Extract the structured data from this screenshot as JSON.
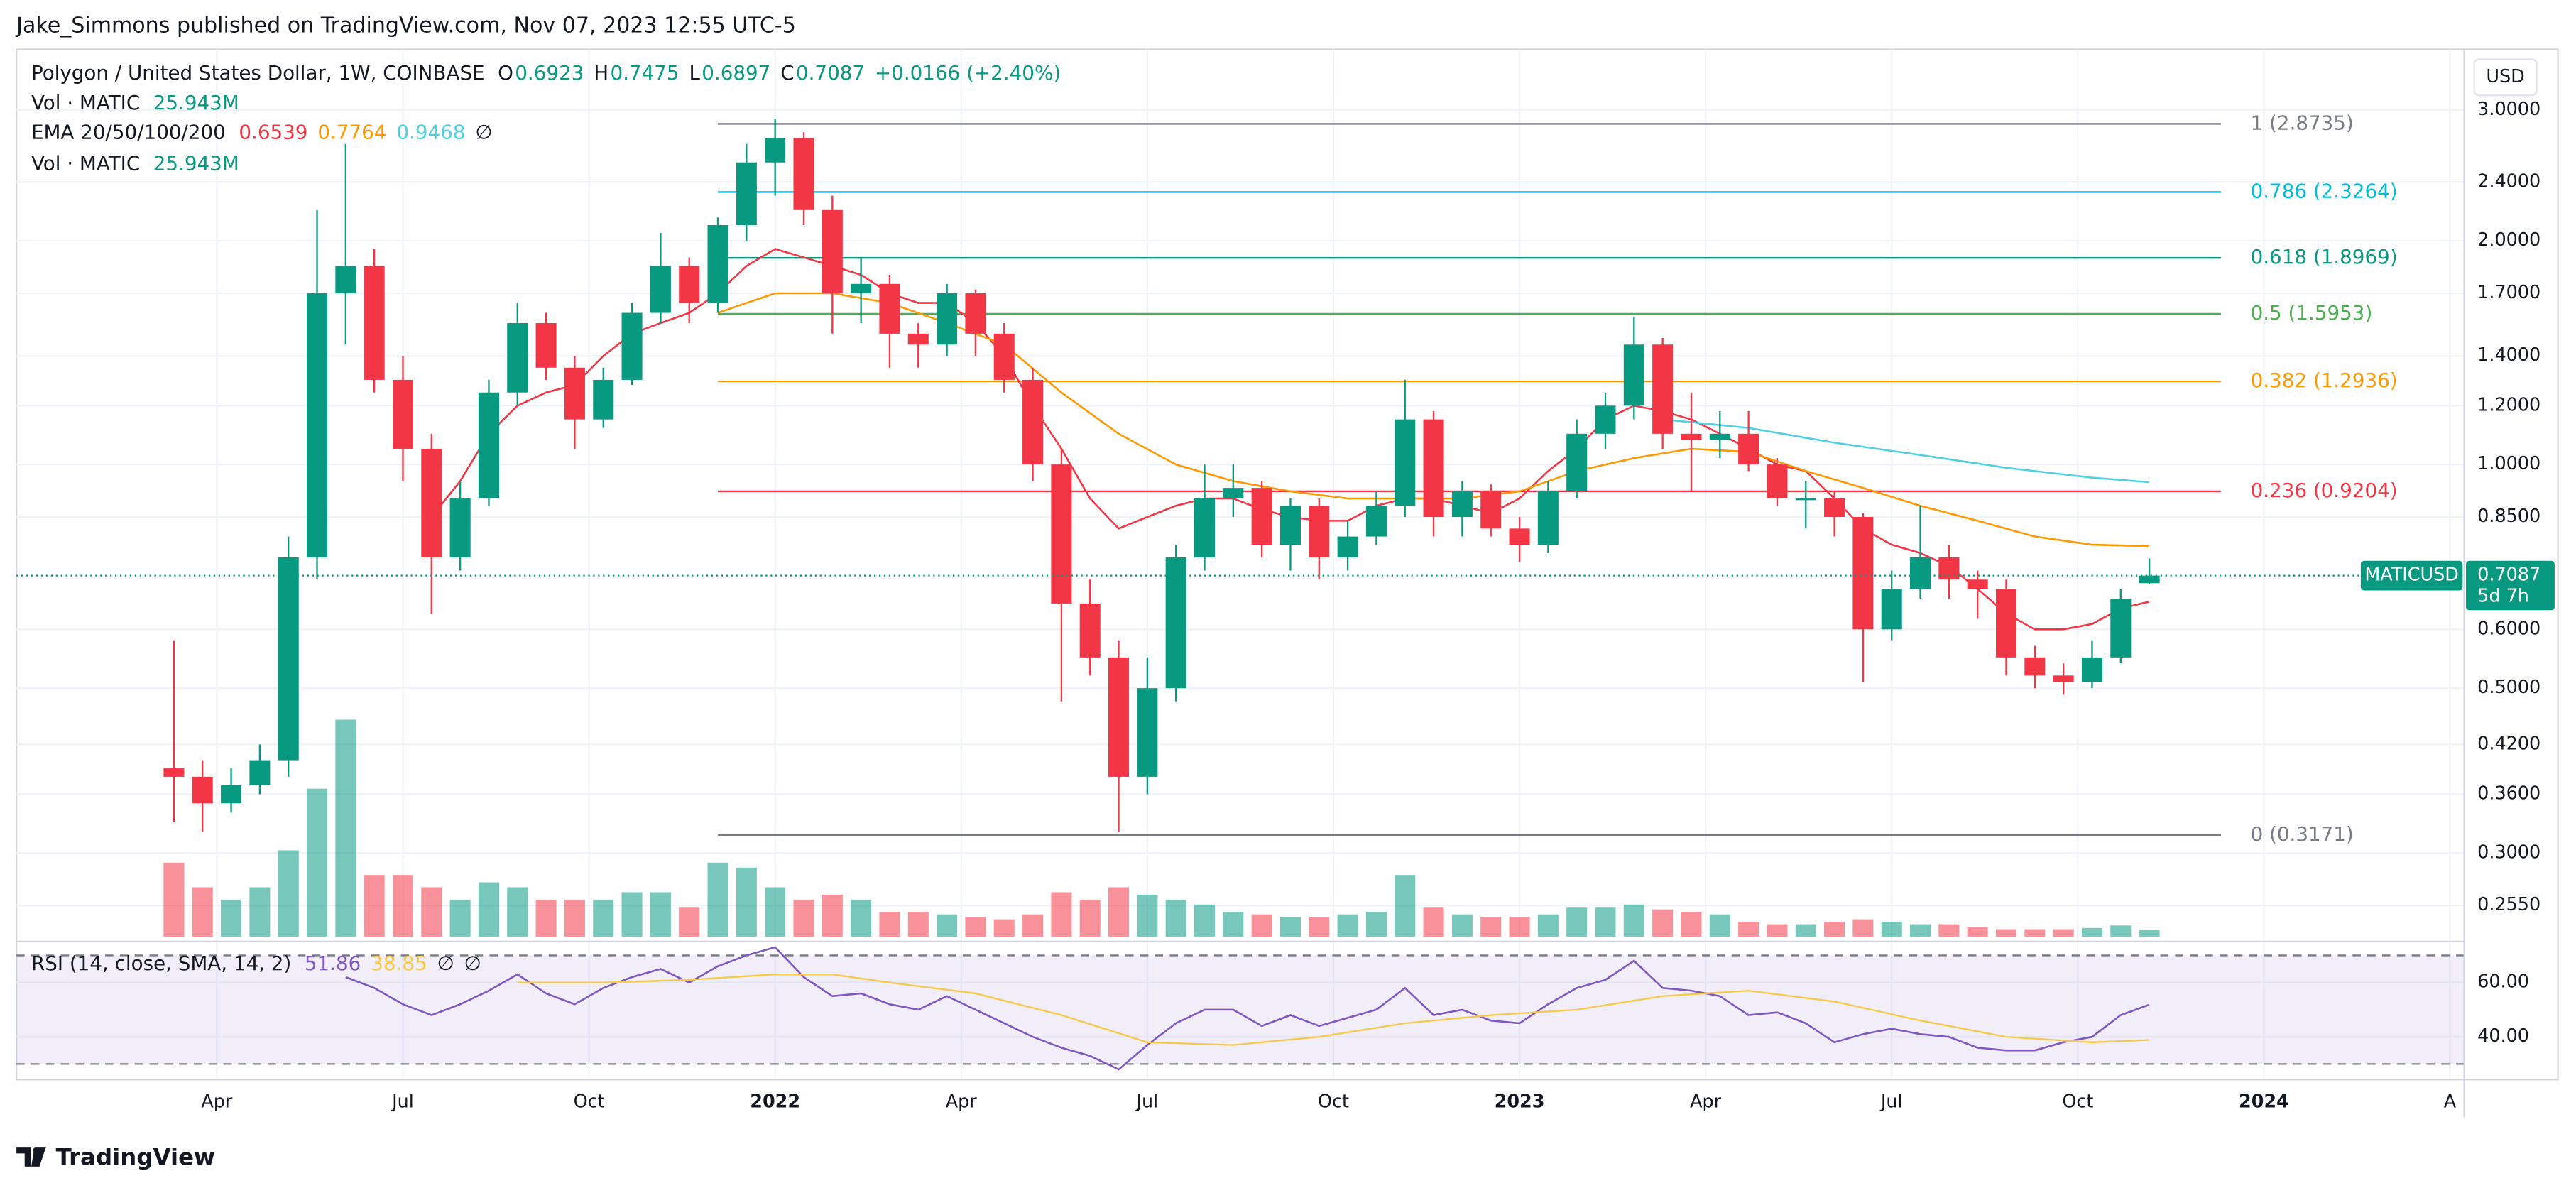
{
  "published": "Jake_Simmons published on TradingView.com, Nov 07, 2023 12:55 UTC-5",
  "brand": "TradingView",
  "chart_data": {
    "type": "candlestick",
    "title": "Polygon / United States Dollar, 1W, COINBASE",
    "ohlc_labels": [
      "O",
      "H",
      "L",
      "C"
    ],
    "change": "+0.0166 (+2.40%)",
    "currency": "USD",
    "symbol": "MATICUSD",
    "countdown": "5d 7h",
    "log_scale": true,
    "grid": true,
    "up_color": "#089981",
    "down_color": "#f23645",
    "candles": [
      [
        10,
        0.39,
        0.58,
        0.33,
        0.38
      ],
      [
        12,
        0.38,
        0.4,
        0.32,
        0.35
      ],
      [
        14,
        0.35,
        0.39,
        0.34,
        0.37
      ],
      [
        16,
        0.37,
        0.42,
        0.36,
        0.4
      ],
      [
        18,
        0.4,
        0.8,
        0.38,
        0.75
      ],
      [
        20,
        0.75,
        2.2,
        0.7,
        1.7
      ],
      [
        22,
        1.7,
        2.7,
        1.45,
        1.85
      ],
      [
        24,
        1.85,
        1.95,
        1.25,
        1.3
      ],
      [
        26,
        1.3,
        1.4,
        0.95,
        1.05
      ],
      [
        28,
        1.05,
        1.1,
        0.63,
        0.75
      ],
      [
        30,
        0.75,
        0.95,
        0.72,
        0.9
      ],
      [
        32,
        0.9,
        1.3,
        0.88,
        1.25
      ],
      [
        34,
        1.25,
        1.65,
        1.2,
        1.55
      ],
      [
        36,
        1.55,
        1.6,
        1.3,
        1.35
      ],
      [
        38,
        1.35,
        1.4,
        1.05,
        1.15
      ],
      [
        40,
        1.15,
        1.35,
        1.12,
        1.3
      ],
      [
        42,
        1.3,
        1.65,
        1.28,
        1.6
      ],
      [
        44,
        1.6,
        2.05,
        1.55,
        1.85
      ],
      [
        46,
        1.85,
        1.9,
        1.55,
        1.65
      ],
      [
        48,
        1.65,
        2.15,
        1.6,
        2.1
      ],
      [
        50,
        2.1,
        2.7,
        2.0,
        2.55
      ],
      [
        52,
        2.55,
        2.92,
        2.3,
        2.75
      ],
      [
        54,
        2.75,
        2.8,
        2.1,
        2.2
      ],
      [
        56,
        2.2,
        2.3,
        1.5,
        1.7
      ],
      [
        58,
        1.7,
        1.9,
        1.55,
        1.75
      ],
      [
        60,
        1.75,
        1.8,
        1.35,
        1.5
      ],
      [
        62,
        1.5,
        1.55,
        1.35,
        1.45
      ],
      [
        64,
        1.45,
        1.75,
        1.4,
        1.7
      ],
      [
        66,
        1.7,
        1.72,
        1.4,
        1.5
      ],
      [
        68,
        1.5,
        1.55,
        1.25,
        1.3
      ],
      [
        70,
        1.3,
        1.35,
        0.95,
        1.0
      ],
      [
        72,
        1.0,
        1.05,
        0.48,
        0.65
      ],
      [
        74,
        0.65,
        0.7,
        0.52,
        0.55
      ],
      [
        76,
        0.55,
        0.58,
        0.32,
        0.38
      ],
      [
        78,
        0.38,
        0.55,
        0.36,
        0.5
      ],
      [
        80,
        0.5,
        0.78,
        0.48,
        0.75
      ],
      [
        82,
        0.75,
        1.0,
        0.72,
        0.9
      ],
      [
        84,
        0.9,
        1.0,
        0.85,
        0.93
      ],
      [
        86,
        0.93,
        0.95,
        0.75,
        0.78
      ],
      [
        88,
        0.78,
        0.9,
        0.72,
        0.88
      ],
      [
        90,
        0.88,
        0.9,
        0.7,
        0.75
      ],
      [
        92,
        0.75,
        0.84,
        0.72,
        0.8
      ],
      [
        94,
        0.8,
        0.92,
        0.78,
        0.88
      ],
      [
        96,
        0.88,
        1.3,
        0.85,
        1.15
      ],
      [
        98,
        1.15,
        1.18,
        0.8,
        0.85
      ],
      [
        100,
        0.85,
        0.95,
        0.8,
        0.92
      ],
      [
        102,
        0.92,
        0.94,
        0.8,
        0.82
      ],
      [
        104,
        0.82,
        0.85,
        0.74,
        0.78
      ],
      [
        106,
        0.78,
        0.95,
        0.76,
        0.92
      ],
      [
        108,
        0.92,
        1.15,
        0.9,
        1.1
      ],
      [
        110,
        1.1,
        1.25,
        1.05,
        1.2
      ],
      [
        112,
        1.2,
        1.58,
        1.15,
        1.45
      ],
      [
        114,
        1.45,
        1.48,
        1.05,
        1.1
      ],
      [
        116,
        1.1,
        1.25,
        0.92,
        1.08
      ],
      [
        118,
        1.08,
        1.18,
        1.02,
        1.1
      ],
      [
        120,
        1.1,
        1.18,
        0.98,
        1.0
      ],
      [
        122,
        1.0,
        1.02,
        0.88,
        0.9
      ],
      [
        124,
        0.9,
        0.95,
        0.82,
        0.9
      ],
      [
        126,
        0.9,
        0.92,
        0.8,
        0.85
      ],
      [
        128,
        0.85,
        0.86,
        0.51,
        0.6
      ],
      [
        130,
        0.6,
        0.72,
        0.58,
        0.68
      ],
      [
        132,
        0.68,
        0.88,
        0.66,
        0.75
      ],
      [
        134,
        0.75,
        0.78,
        0.66,
        0.7
      ],
      [
        136,
        0.7,
        0.72,
        0.62,
        0.68
      ],
      [
        138,
        0.68,
        0.7,
        0.52,
        0.55
      ],
      [
        140,
        0.55,
        0.57,
        0.5,
        0.52
      ],
      [
        142,
        0.52,
        0.54,
        0.49,
        0.51
      ],
      [
        144,
        0.51,
        0.58,
        0.5,
        0.55
      ],
      [
        146,
        0.55,
        0.68,
        0.54,
        0.66
      ],
      [
        148,
        0.6923,
        0.7475,
        0.6897,
        0.7087
      ]
    ],
    "xlim": [
      -1,
      170
    ],
    "xticks": [
      {
        "value": 13,
        "label": "Apr"
      },
      {
        "value": 26,
        "label": "Jul"
      },
      {
        "value": 39,
        "label": "Oct"
      },
      {
        "value": 52,
        "label": "2022"
      },
      {
        "value": 65,
        "label": "Apr"
      },
      {
        "value": 78,
        "label": "Jul"
      },
      {
        "value": 91,
        "label": "Oct"
      },
      {
        "value": 104,
        "label": "2023"
      },
      {
        "value": 117,
        "label": "Apr"
      },
      {
        "value": 130,
        "label": "Jul"
      },
      {
        "value": 143,
        "label": "Oct"
      },
      {
        "value": 156,
        "label": "2024"
      },
      {
        "value": 169,
        "label": "A"
      }
    ],
    "ylim": [
      0.2316,
      3.62
    ],
    "yticks": [
      {
        "value": 3.0,
        "label": "3.0000"
      },
      {
        "value": 2.4,
        "label": "2.4000"
      },
      {
        "value": 2.0,
        "label": "2.0000"
      },
      {
        "value": 1.7,
        "label": "1.7000"
      },
      {
        "value": 1.4,
        "label": "1.4000"
      },
      {
        "value": 1.2,
        "label": "1.2000"
      },
      {
        "value": 1.0,
        "label": "1.0000"
      },
      {
        "value": 0.85,
        "label": "0.8500"
      },
      {
        "value": 0.6,
        "label": "0.6000"
      },
      {
        "value": 0.5,
        "label": "0.5000"
      },
      {
        "value": 0.42,
        "label": "0.4200"
      },
      {
        "value": 0.36,
        "label": "0.3600"
      },
      {
        "value": 0.3,
        "label": "0.3000"
      },
      {
        "value": 0.255,
        "label": "0.2550"
      }
    ],
    "volume": {
      "label": "Vol · MATIC",
      "value_label": "25.943M",
      "ylim": [
        0,
        900
      ],
      "values": [
        300,
        200,
        150,
        200,
        350,
        600,
        880,
        250,
        250,
        200,
        150,
        220,
        200,
        150,
        150,
        150,
        180,
        180,
        120,
        300,
        280,
        200,
        150,
        170,
        150,
        100,
        100,
        90,
        80,
        70,
        90,
        180,
        150,
        200,
        170,
        150,
        130,
        100,
        90,
        80,
        80,
        90,
        100,
        250,
        120,
        90,
        80,
        80,
        90,
        120,
        120,
        130,
        110,
        100,
        90,
        60,
        50,
        50,
        60,
        70,
        60,
        50,
        50,
        40,
        30,
        30,
        30,
        35,
        45,
        25.943
      ]
    },
    "ema": {
      "label": "EMA 20/50/100/200",
      "missing": "∅",
      "series": [
        {
          "color": "#f23645",
          "x": [
            28,
            30,
            32,
            34,
            36,
            38,
            40,
            42,
            44,
            46,
            48,
            50,
            52,
            54,
            56,
            58,
            60,
            62,
            64,
            66,
            68,
            70,
            72,
            74,
            76,
            78,
            80,
            82,
            84,
            86,
            88,
            90,
            92,
            94,
            96,
            98,
            100,
            102,
            104,
            106,
            108,
            110,
            112,
            114,
            116,
            118,
            120,
            122,
            124,
            126,
            128,
            130,
            132,
            134,
            136,
            138,
            140,
            142,
            144,
            146,
            148
          ],
          "values": [
            0.85,
            0.95,
            1.1,
            1.2,
            1.25,
            1.28,
            1.4,
            1.5,
            1.55,
            1.6,
            1.7,
            1.85,
            1.95,
            1.9,
            1.85,
            1.8,
            1.7,
            1.65,
            1.65,
            1.55,
            1.4,
            1.2,
            1.05,
            0.9,
            0.82,
            0.85,
            0.88,
            0.9,
            0.9,
            0.87,
            0.85,
            0.84,
            0.84,
            0.88,
            0.9,
            0.9,
            0.88,
            0.86,
            0.9,
            0.98,
            1.05,
            1.15,
            1.2,
            1.18,
            1.15,
            1.1,
            1.05,
            1.0,
            0.98,
            0.9,
            0.82,
            0.78,
            0.76,
            0.73,
            0.68,
            0.63,
            0.6,
            0.6,
            0.61,
            0.64,
            0.6539
          ]
        },
        {
          "color": "#ff9800",
          "x": [
            48,
            50,
            52,
            56,
            60,
            64,
            68,
            72,
            76,
            80,
            84,
            88,
            92,
            96,
            100,
            104,
            108,
            112,
            116,
            120,
            124,
            128,
            132,
            136,
            140,
            144,
            148
          ],
          "values": [
            1.6,
            1.65,
            1.7,
            1.7,
            1.65,
            1.55,
            1.45,
            1.25,
            1.1,
            1.0,
            0.95,
            0.92,
            0.9,
            0.9,
            0.9,
            0.92,
            0.98,
            1.02,
            1.05,
            1.04,
            0.98,
            0.93,
            0.88,
            0.84,
            0.8,
            0.78,
            0.7764
          ]
        },
        {
          "color": "#4dd0e1",
          "x": [
            114,
            120,
            126,
            132,
            138,
            144,
            148
          ],
          "values": [
            1.15,
            1.12,
            1.07,
            1.03,
            0.99,
            0.96,
            0.9468
          ]
        }
      ]
    },
    "fib_x": [
      48,
      153
    ],
    "fib": [
      {
        "label": "1 (2.8735)",
        "value": 2.8735,
        "color": "#787b86"
      },
      {
        "label": "0.786 (2.3264)",
        "value": 2.3264,
        "color": "#00bcd4"
      },
      {
        "label": "0.618 (1.8969)",
        "value": 1.8969,
        "color": "#089981"
      },
      {
        "label": "0.5 (1.5953)",
        "value": 1.5953,
        "color": "#4caf50"
      },
      {
        "label": "0.382 (1.2936)",
        "value": 1.2936,
        "color": "#ff9800"
      },
      {
        "label": "0.236 (0.9204)",
        "value": 0.9204,
        "color": "#f23645"
      },
      {
        "label": "0 (0.3171)",
        "value": 0.3171,
        "color": "#787b86"
      }
    ],
    "rsi": {
      "label": "RSI (14, close, SMA, 14, 2)",
      "color": "#7e57c2",
      "missing": [
        "∅",
        "∅"
      ],
      "values": [
        null,
        null,
        null,
        null,
        null,
        null,
        62,
        58,
        52,
        48,
        52,
        57,
        63,
        56,
        52,
        58,
        62,
        65,
        60,
        66,
        70,
        73,
        62,
        55,
        56,
        52,
        50,
        55,
        50,
        45,
        40,
        36,
        33,
        28,
        37,
        45,
        50,
        50,
        44,
        48,
        44,
        47,
        50,
        58,
        48,
        50,
        46,
        45,
        52,
        58,
        61,
        68,
        58,
        57,
        55,
        48,
        49,
        45,
        38,
        41,
        43,
        41,
        40,
        36,
        35,
        35,
        38,
        40,
        48,
        51.86
      ],
      "sma": {
        "color": "#f7c948",
        "x": [
          34,
          40,
          46,
          52,
          56,
          60,
          66,
          72,
          78,
          84,
          90,
          96,
          102,
          108,
          114,
          120,
          126,
          132,
          138,
          144,
          148
        ],
        "values": [
          60,
          60,
          61,
          63,
          63,
          60,
          56,
          48,
          38,
          37,
          40,
          45,
          48,
          50,
          55,
          57,
          53,
          46,
          40,
          38,
          38.85
        ]
      },
      "ylim": [
        25.5,
        73.9
      ],
      "yticks": [
        {
          "value": 60,
          "label": "60.00"
        },
        {
          "value": 40,
          "label": "40.00"
        }
      ],
      "bands": [
        70,
        30
      ]
    }
  }
}
